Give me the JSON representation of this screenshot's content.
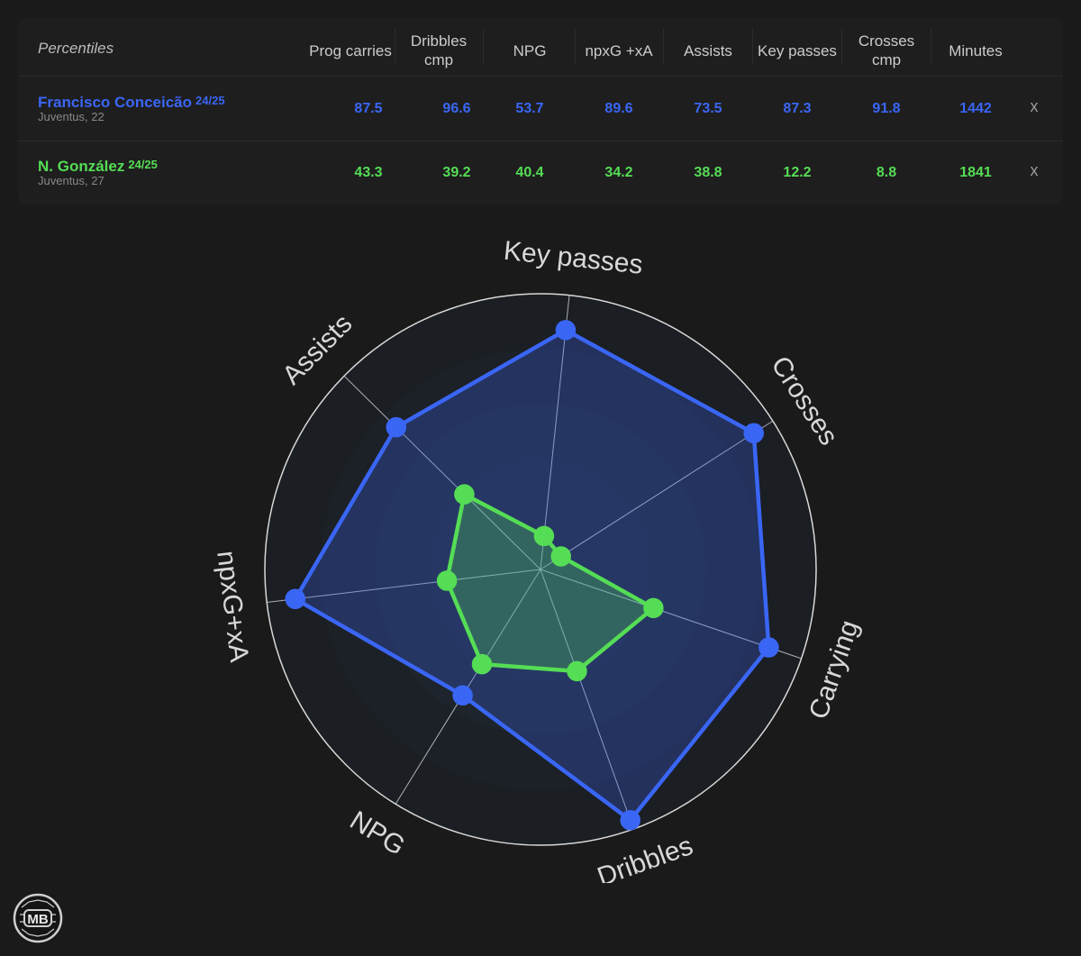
{
  "table": {
    "header_title": "Percentiles",
    "columns": [
      "Prog carries",
      "Dribbles cmp",
      "NPG",
      "npxG +xA",
      "Assists",
      "Key passes",
      "Crosses cmp",
      "Minutes"
    ],
    "players": [
      {
        "name": "Francisco Conceicão",
        "season": "24/25",
        "sub": "Juventus, 22",
        "values": [
          "87.5",
          "96.6",
          "53.7",
          "89.6",
          "73.5",
          "87.3",
          "91.8",
          "1442"
        ],
        "remove_label": "x",
        "color": "#3a66f5"
      },
      {
        "name": "N. González",
        "season": "24/25",
        "sub": "Juventus, 27",
        "values": [
          "43.3",
          "39.2",
          "40.4",
          "34.2",
          "38.8",
          "12.2",
          "8.8",
          "1841"
        ],
        "remove_label": "x",
        "color": "#55dd55"
      }
    ]
  },
  "chart_data": {
    "type": "radar",
    "axes": [
      "Key passes",
      "Crosses",
      "Carrying",
      "Dribbles",
      "NPG",
      "npxG+xA",
      "Assists"
    ],
    "range": [
      0,
      100
    ],
    "series": [
      {
        "name": "Francisco Conceicão 24/25",
        "color": "#3a66f5",
        "values": [
          87.3,
          91.8,
          87.5,
          96.6,
          53.7,
          89.6,
          73.5
        ]
      },
      {
        "name": "N. González 24/25",
        "color": "#55dd55",
        "values": [
          12.2,
          8.8,
          43.3,
          39.2,
          40.4,
          34.2,
          38.8
        ]
      }
    ]
  },
  "logo": {
    "text": "MB"
  }
}
